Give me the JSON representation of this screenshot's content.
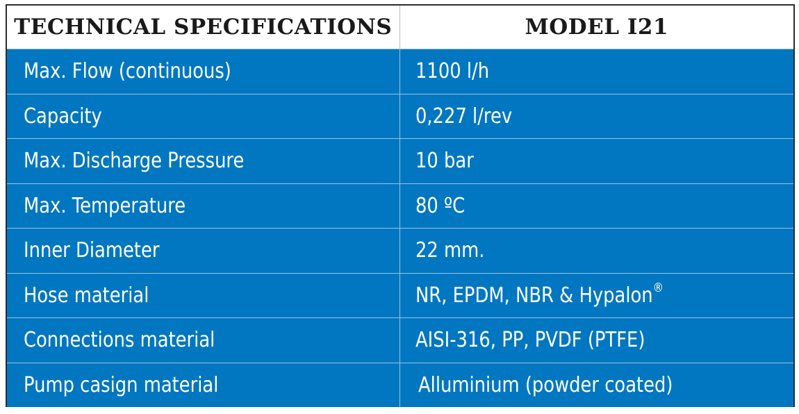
{
  "header": {
    "col1": "TECHNICAL SPECIFICATIONS",
    "col2": "MODEL I21"
  },
  "rows": [
    {
      "param": "Max. Flow (continuous)",
      "value": "1100 l/h"
    },
    {
      "param": "Capacity",
      "value": "0,227 l/rev"
    },
    {
      "param": "Max. Discharge Pressure",
      "value": "10 bar"
    },
    {
      "param": "Max. Temperature",
      "value": "80 ºC"
    },
    {
      "param": "Inner Diameter",
      "value": "22 mm."
    },
    {
      "param": "Hose material",
      "value": "NR, EPDM, NBR & Hypalon",
      "value_suffix": "®"
    },
    {
      "param": "Connections material",
      "value": "AISI-316, PP, PVDF (PTFE)"
    },
    {
      "param": "Pump casign material",
      "value": "Alluminium (powder coated)"
    }
  ],
  "colors": {
    "row_background": "#0077c0",
    "row_text": "#ffffff",
    "header_background": "#ffffff",
    "header_text": "#1a1a1a",
    "border": "#2b2b2b"
  }
}
